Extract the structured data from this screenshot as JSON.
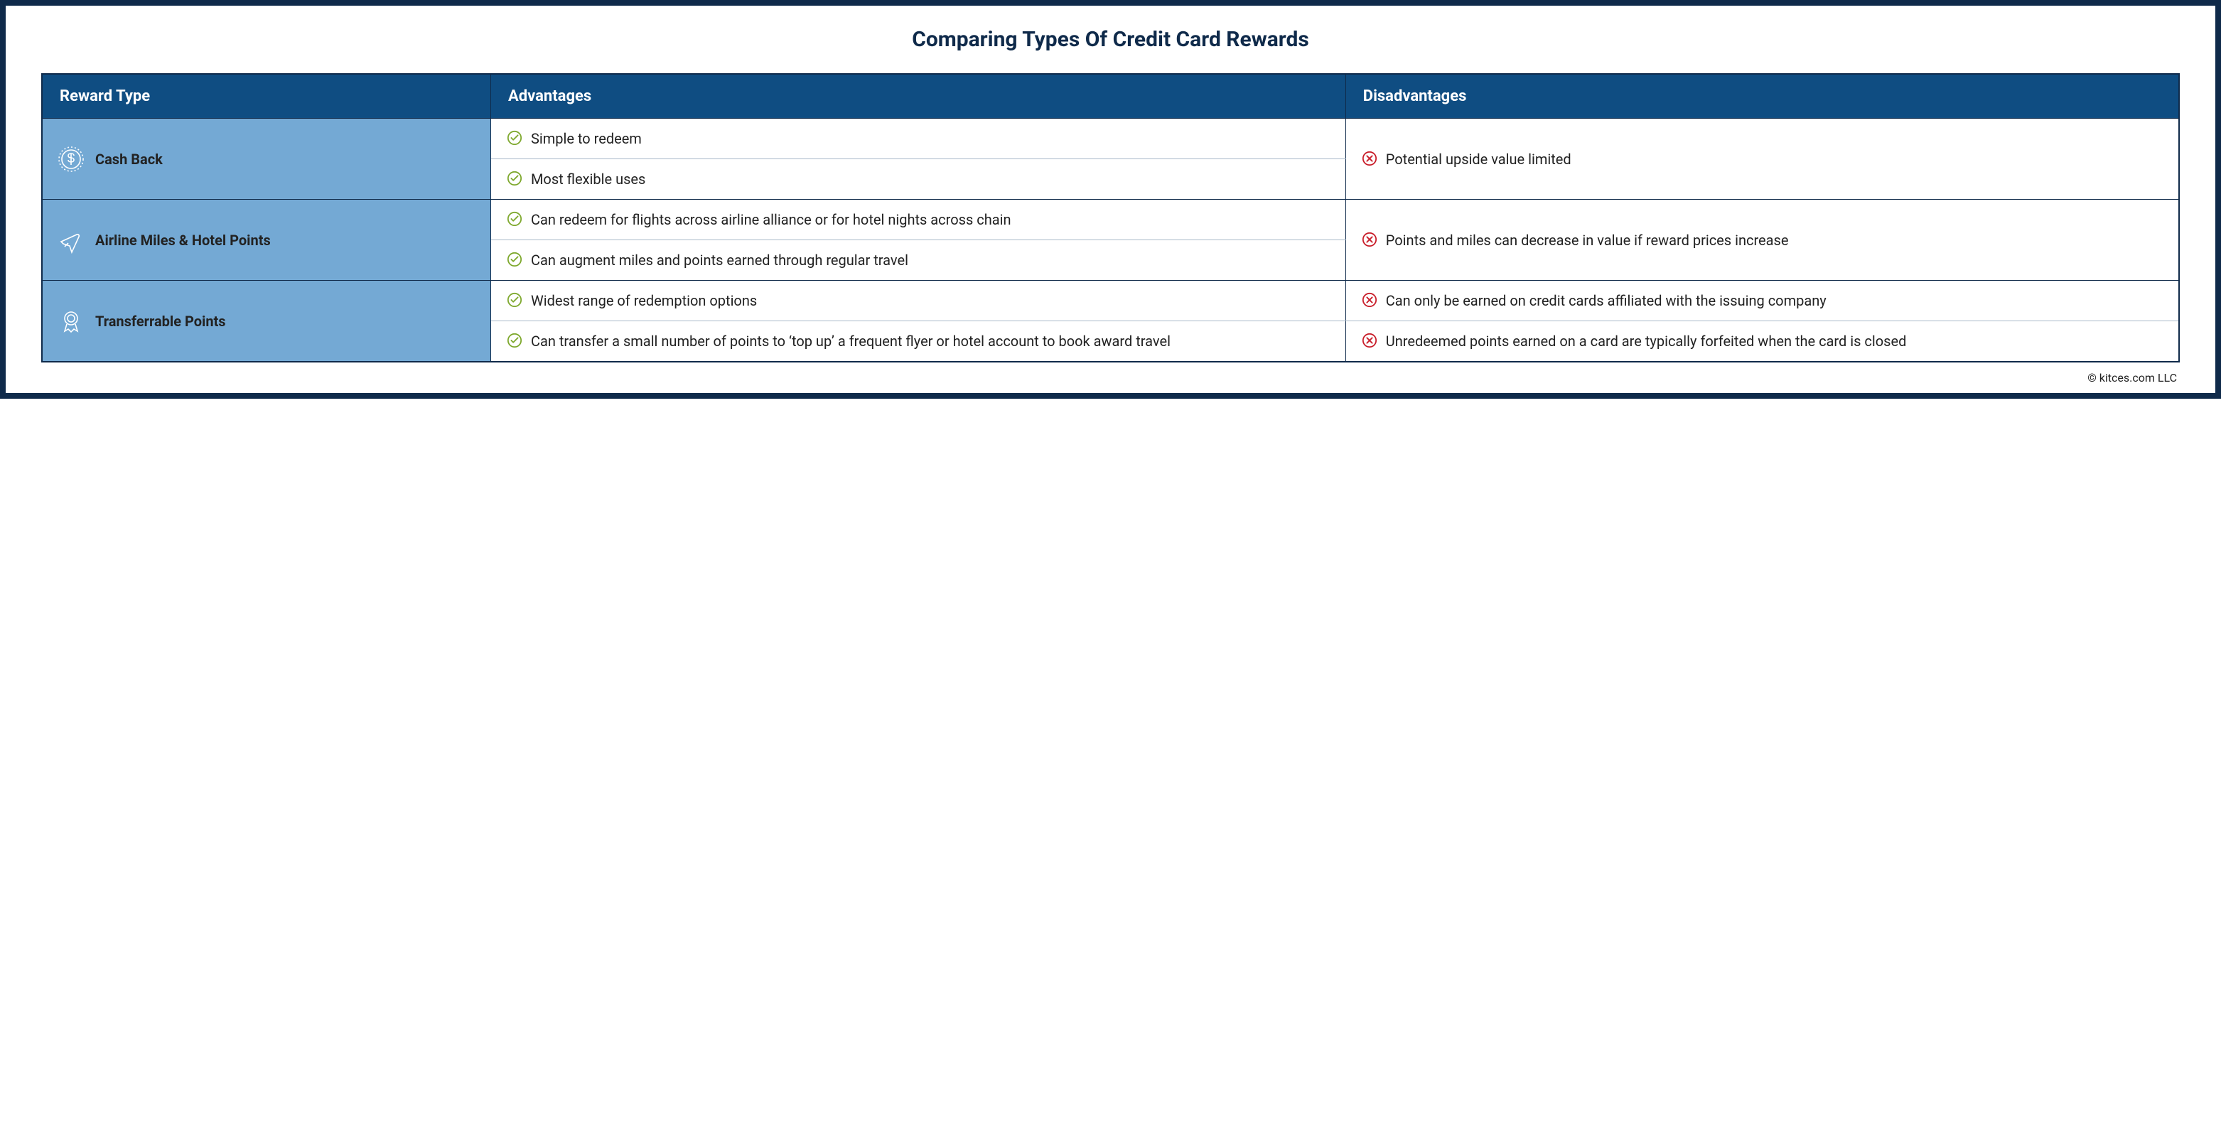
{
  "colors": {
    "frame": "#0f2a4a",
    "header_bg": "#0f4d82",
    "type_bg": "#74a9d4",
    "text": "#222222",
    "white": "#ffffff",
    "check": "#7fa92f",
    "cross": "#c9202c",
    "subdivider": "#a8b8c8"
  },
  "title": "Comparing Types Of Credit Card Rewards",
  "headers": {
    "type": "Reward Type",
    "adv": "Advantages",
    "dis": "Disadvantages"
  },
  "rows": [
    {
      "icon": "dollar",
      "label": "Cash Back",
      "advantages": [
        "Simple to redeem",
        "Most flexible uses"
      ],
      "disadvantages": [
        "Potential upside value limited"
      ]
    },
    {
      "icon": "plane",
      "label": "Airline Miles & Hotel Points",
      "advantages": [
        "Can redeem for flights across airline alliance or for hotel nights across chain",
        "Can augment miles and points earned through regular travel"
      ],
      "disadvantages": [
        "Points and miles can decrease in value if reward prices increase"
      ]
    },
    {
      "icon": "badge",
      "label": "Transferrable Points",
      "advantages": [
        "Widest range of redemption options",
        "Can transfer a small number of points to ‘top up’ a frequent flyer or hotel account to book award travel"
      ],
      "disadvantages": [
        "Can only be earned on credit cards affiliated with the issuing company",
        "Unredeemed points earned on a card are typically forfeited when the card is closed"
      ]
    }
  ],
  "footer": "© kitces.com LLC"
}
